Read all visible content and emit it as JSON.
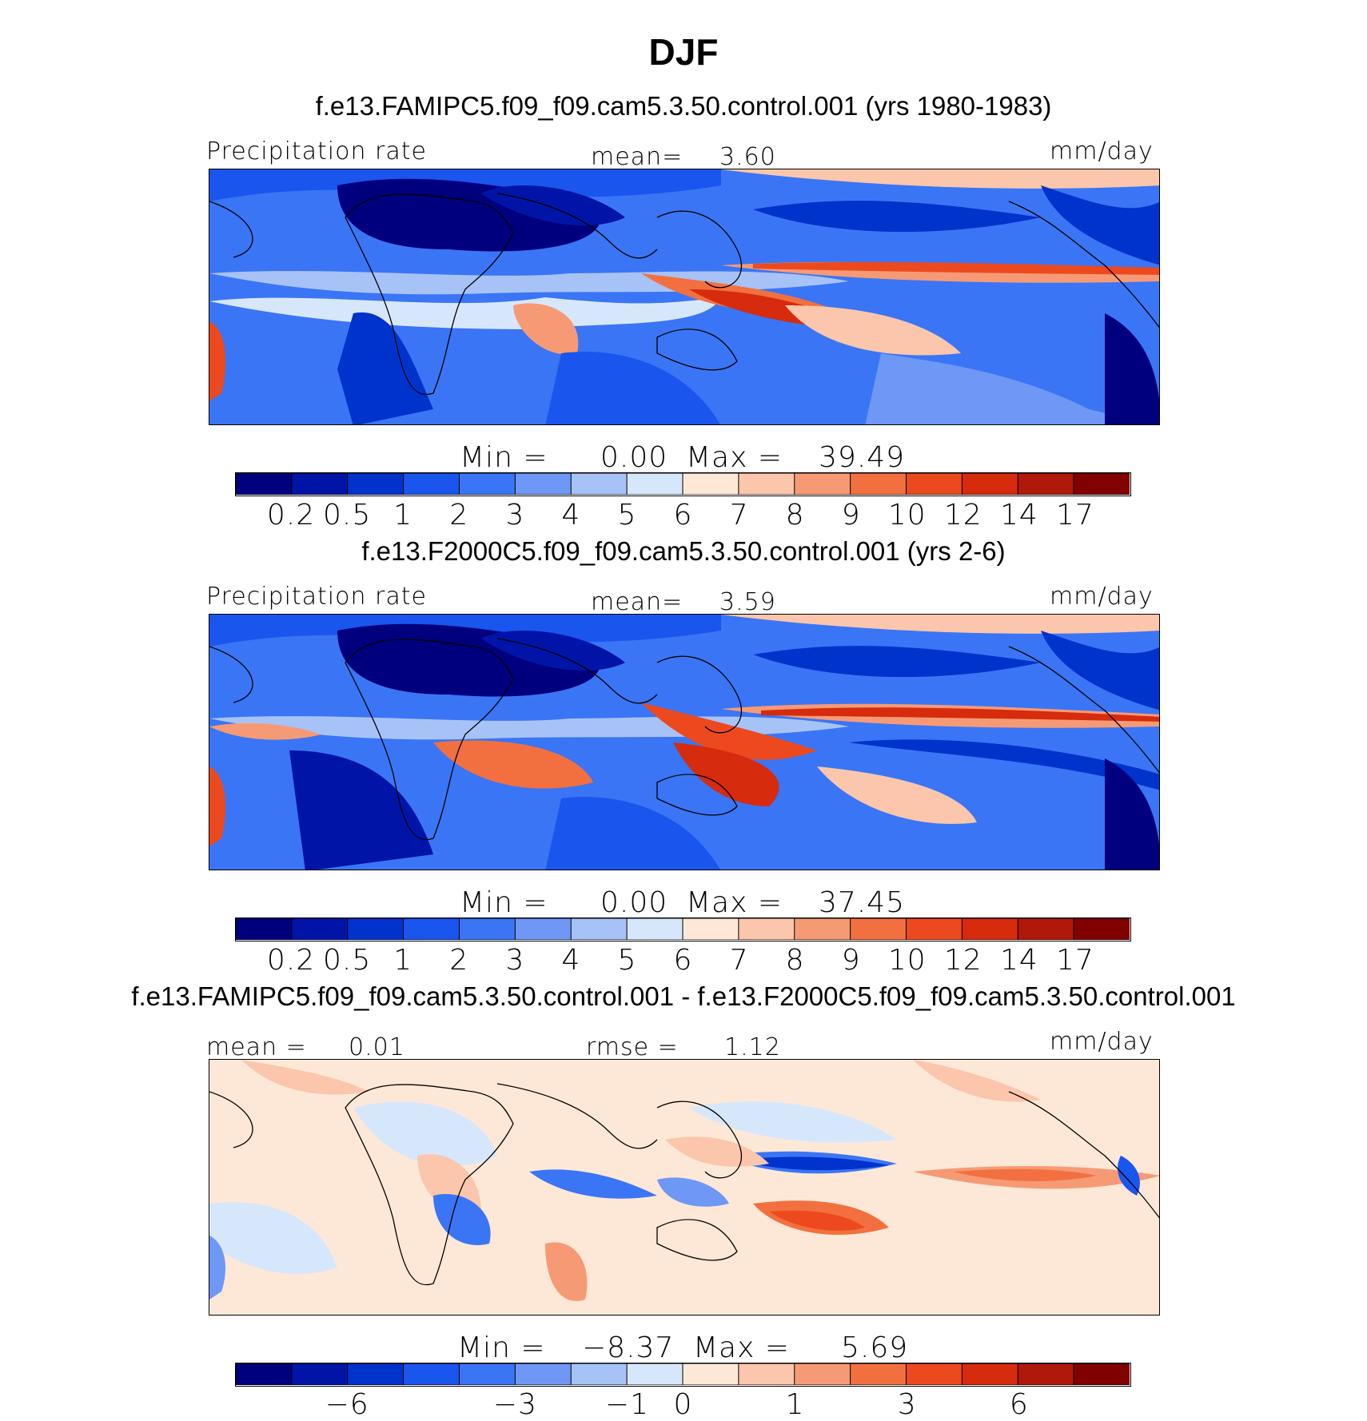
{
  "title": "DJF",
  "colorbar_abs": {
    "colors": [
      "#00007f",
      "#0015a8",
      "#0033cc",
      "#1a55ee",
      "#3a75f5",
      "#6f97f5",
      "#a7c2f7",
      "#d7e7fb",
      "#fde8d7",
      "#fbc6ab",
      "#f69a76",
      "#f2703f",
      "#ec4a1e",
      "#d62b0c",
      "#b0180a",
      "#810000"
    ],
    "ticks": [
      "0.2",
      "0.5",
      "1",
      "2",
      "3",
      "4",
      "5",
      "6",
      "7",
      "8",
      "9",
      "10",
      "12",
      "14",
      "17"
    ]
  },
  "colorbar_diff": {
    "colors": [
      "#00007f",
      "#0015a8",
      "#0033cc",
      "#1a55ee",
      "#3a75f5",
      "#6f97f5",
      "#a7c2f7",
      "#d7e7fb",
      "#fde8d7",
      "#fbc6ab",
      "#f69a76",
      "#f2703f",
      "#ec4a1e",
      "#d62b0c",
      "#b0180a",
      "#810000"
    ],
    "ticks": [
      "−6",
      "−3",
      "−1",
      "0",
      "1",
      "3",
      "6"
    ]
  },
  "panels": [
    {
      "title": "f.e13.FAMIPC5.f09_f09.cam5.3.50.control.001 (yrs 1980-1983)",
      "left_label": "Precipitation rate",
      "mid_label": "mean=",
      "mid_value": "3.60",
      "units": "mm/day",
      "min_label": "Min =",
      "min_value": "0.00",
      "max_label": "Max =",
      "max_value": "39.49"
    },
    {
      "title": "f.e13.F2000C5.f09_f09.cam5.3.50.control.001 (yrs 2-6)",
      "left_label": "Precipitation rate",
      "mid_label": "mean=",
      "mid_value": "3.59",
      "units": "mm/day",
      "min_label": "Min =",
      "min_value": "0.00",
      "max_label": "Max =",
      "max_value": "37.45"
    },
    {
      "title": "f.e13.FAMIPC5.f09_f09.cam5.3.50.control.001 - f.e13.F2000C5.f09_f09.cam5.3.50.control.001",
      "left_label": "mean =",
      "left_value": "0.01",
      "mid_label": "rmse =",
      "mid_value": "1.12",
      "units": "mm/day",
      "min_label": "Min =",
      "min_value": "−8.37",
      "max_label": "Max =",
      "max_value": "5.69"
    }
  ],
  "chart_data": [
    {
      "type": "heatmap",
      "title": "f.e13.FAMIPC5.f09_f09.cam5.3.50.control.001 (yrs 1980-1983)",
      "field": "Precipitation rate",
      "units": "mm/day",
      "mean": 3.6,
      "min": 0.0,
      "max": 39.49,
      "levels": [
        0.2,
        0.5,
        1,
        2,
        3,
        4,
        5,
        6,
        7,
        8,
        9,
        10,
        12,
        14,
        17
      ]
    },
    {
      "type": "heatmap",
      "title": "f.e13.F2000C5.f09_f09.cam5.3.50.control.001 (yrs 2-6)",
      "field": "Precipitation rate",
      "units": "mm/day",
      "mean": 3.59,
      "min": 0.0,
      "max": 37.45,
      "levels": [
        0.2,
        0.5,
        1,
        2,
        3,
        4,
        5,
        6,
        7,
        8,
        9,
        10,
        12,
        14,
        17
      ]
    },
    {
      "type": "heatmap",
      "title": "f.e13.FAMIPC5.f09_f09.cam5.3.50.control.001 - f.e13.F2000C5.f09_f09.cam5.3.50.control.001",
      "units": "mm/day",
      "mean": 0.01,
      "rmse": 1.12,
      "min": -8.37,
      "max": 5.69,
      "levels": [
        -6,
        -3,
        -1,
        0,
        1,
        3,
        6
      ]
    }
  ]
}
